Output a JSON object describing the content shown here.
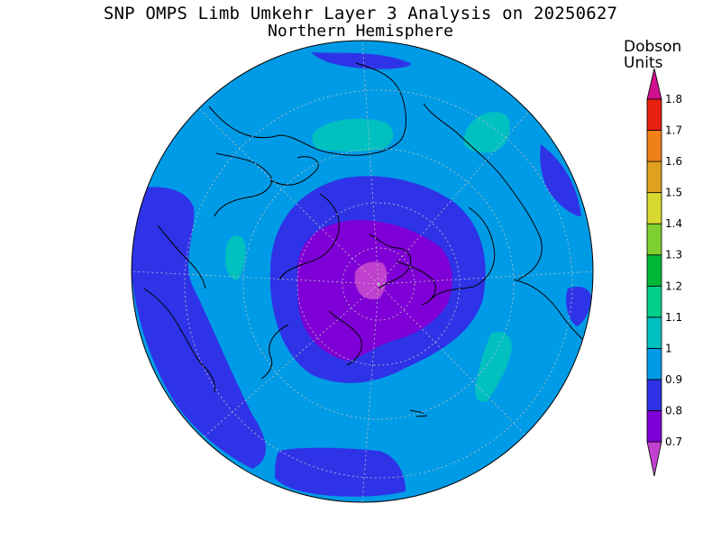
{
  "title": "SNP OMPS Limb Umkehr Layer 3 Analysis on 20250627",
  "subtitle": "Northern Hemisphere",
  "colorbar": {
    "unit_line1": "Dobson",
    "unit_line2": "Units",
    "levels": [
      {
        "value": 0.7,
        "label": "0.7",
        "color": "#7f00d6"
      },
      {
        "value": 0.8,
        "label": "0.8",
        "color": "#2f33e8"
      },
      {
        "value": 0.9,
        "label": "0.9",
        "color": "#009be6"
      },
      {
        "value": 1.0,
        "label": "1",
        "color": "#00c0c0"
      },
      {
        "value": 1.1,
        "label": "1.1",
        "color": "#00cf8a"
      },
      {
        "value": 1.2,
        "label": "1.2",
        "color": "#00b838"
      },
      {
        "value": 1.3,
        "label": "1.3",
        "color": "#7ed030"
      },
      {
        "value": 1.4,
        "label": "1.4",
        "color": "#d8d830"
      },
      {
        "value": 1.5,
        "label": "1.5",
        "color": "#e0a020"
      },
      {
        "value": 1.6,
        "label": "1.6",
        "color": "#f08018"
      },
      {
        "value": 1.7,
        "label": "1.7",
        "color": "#e82010"
      },
      {
        "value": 1.8,
        "label": "1.8",
        "color": "#e00000"
      }
    ],
    "under_color": "#c040d0",
    "over_color": "#d01090"
  },
  "map": {
    "projection": "north polar stereographic",
    "background_color": "#009be6",
    "low_core_color": "#c040d0"
  }
}
